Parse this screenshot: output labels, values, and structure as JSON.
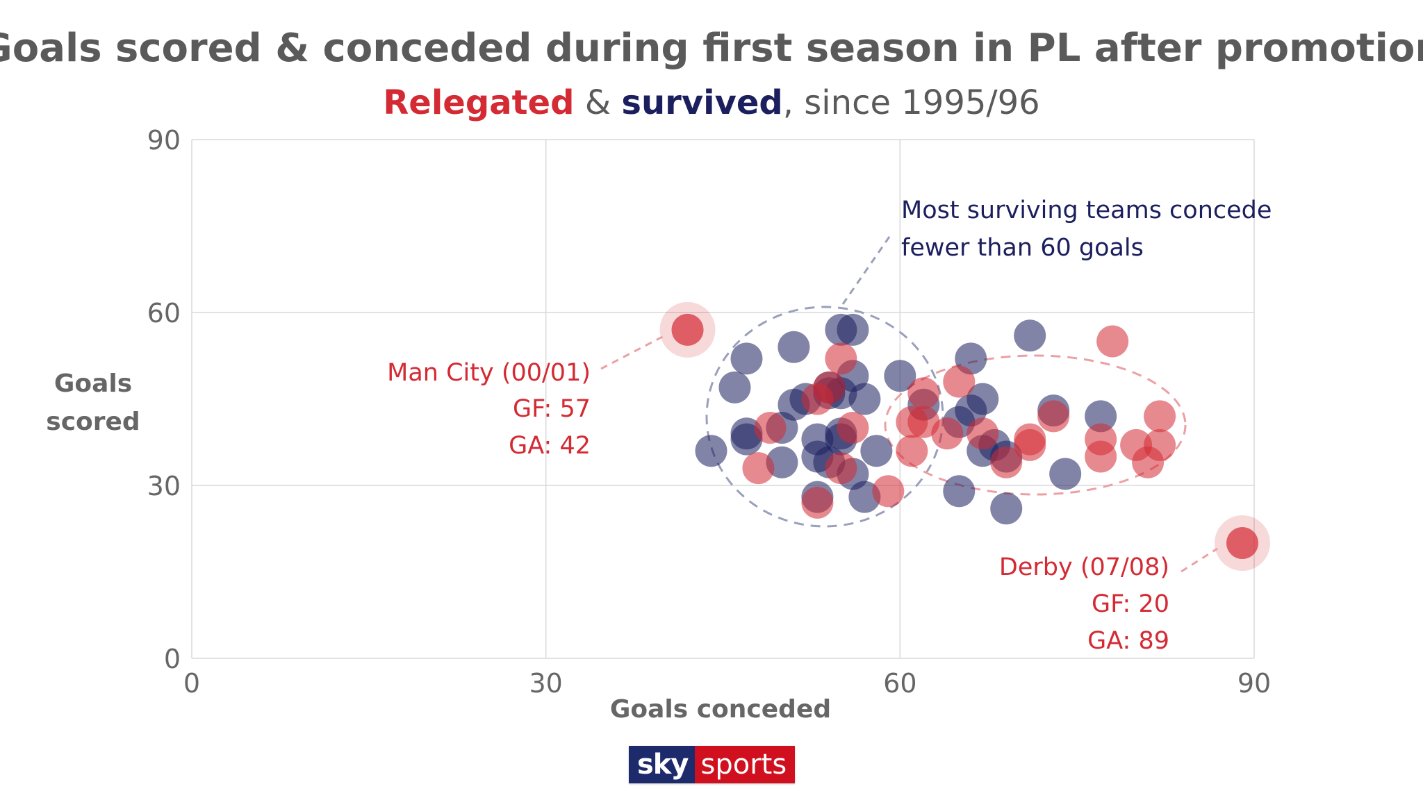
{
  "colors": {
    "relegated": "#d42a33",
    "survived": "#1c1f5e",
    "title_gray": "#5a5a5a",
    "axis_gray": "#666666",
    "grid": "#d8d8d8",
    "brand_navy": "#1d2a6b",
    "brand_red": "#d0101f"
  },
  "chart_data": {
    "type": "scatter",
    "title": "Goals scored & conceded during first season in PL after promotion",
    "subtitle": {
      "relegated_word": "Relegated",
      "connector": " & ",
      "survived_word": "survived",
      "suffix": ", since 1995/96"
    },
    "xlabel": "Goals conceded",
    "ylabel_lines": [
      "Goals",
      "scored"
    ],
    "xlim": [
      0,
      90
    ],
    "ylim": [
      0,
      90
    ],
    "x_ticks": [
      "0",
      "30",
      "60",
      "90"
    ],
    "y_ticks": [
      "0",
      "30",
      "60",
      "90"
    ],
    "grid": true,
    "series": [
      {
        "name": "Survived",
        "color": "#1c1f5e",
        "points": [
          {
            "x": 44,
            "y": 36
          },
          {
            "x": 46,
            "y": 47
          },
          {
            "x": 47,
            "y": 52
          },
          {
            "x": 47,
            "y": 38
          },
          {
            "x": 47,
            "y": 39
          },
          {
            "x": 50,
            "y": 34
          },
          {
            "x": 50,
            "y": 40
          },
          {
            "x": 51,
            "y": 54
          },
          {
            "x": 51,
            "y": 44
          },
          {
            "x": 52,
            "y": 45
          },
          {
            "x": 53,
            "y": 38
          },
          {
            "x": 53,
            "y": 35
          },
          {
            "x": 53,
            "y": 28
          },
          {
            "x": 54,
            "y": 47
          },
          {
            "x": 54,
            "y": 46
          },
          {
            "x": 54,
            "y": 34
          },
          {
            "x": 55,
            "y": 38
          },
          {
            "x": 55,
            "y": 39
          },
          {
            "x": 55,
            "y": 46
          },
          {
            "x": 55,
            "y": 57
          },
          {
            "x": 56,
            "y": 32
          },
          {
            "x": 56,
            "y": 57
          },
          {
            "x": 56,
            "y": 49
          },
          {
            "x": 57,
            "y": 45
          },
          {
            "x": 57,
            "y": 28
          },
          {
            "x": 58,
            "y": 36
          },
          {
            "x": 60,
            "y": 49
          },
          {
            "x": 62,
            "y": 44
          },
          {
            "x": 65,
            "y": 41
          },
          {
            "x": 65,
            "y": 29
          },
          {
            "x": 66,
            "y": 52
          },
          {
            "x": 66,
            "y": 43
          },
          {
            "x": 67,
            "y": 45
          },
          {
            "x": 67,
            "y": 36
          },
          {
            "x": 68,
            "y": 37
          },
          {
            "x": 69,
            "y": 35
          },
          {
            "x": 69,
            "y": 26
          },
          {
            "x": 71,
            "y": 56
          },
          {
            "x": 73,
            "y": 43
          },
          {
            "x": 74,
            "y": 32
          },
          {
            "x": 77,
            "y": 42
          }
        ]
      },
      {
        "name": "Relegated",
        "color": "#d42a33",
        "points": [
          {
            "x": 48,
            "y": 33
          },
          {
            "x": 49,
            "y": 40
          },
          {
            "x": 53,
            "y": 45
          },
          {
            "x": 53,
            "y": 27
          },
          {
            "x": 54,
            "y": 47
          },
          {
            "x": 55,
            "y": 52
          },
          {
            "x": 55,
            "y": 33
          },
          {
            "x": 56,
            "y": 40
          },
          {
            "x": 59,
            "y": 29
          },
          {
            "x": 61,
            "y": 41
          },
          {
            "x": 61,
            "y": 36
          },
          {
            "x": 62,
            "y": 41
          },
          {
            "x": 62,
            "y": 46
          },
          {
            "x": 64,
            "y": 39
          },
          {
            "x": 65,
            "y": 48
          },
          {
            "x": 67,
            "y": 39
          },
          {
            "x": 69,
            "y": 34
          },
          {
            "x": 71,
            "y": 37
          },
          {
            "x": 71,
            "y": 38
          },
          {
            "x": 73,
            "y": 42
          },
          {
            "x": 77,
            "y": 38
          },
          {
            "x": 77,
            "y": 35
          },
          {
            "x": 78,
            "y": 55
          },
          {
            "x": 80,
            "y": 37
          },
          {
            "x": 81,
            "y": 34
          },
          {
            "x": 82,
            "y": 37
          },
          {
            "x": 82,
            "y": 42
          }
        ]
      }
    ],
    "highlights": [
      {
        "name": "Man City (00/01)",
        "gf_label": "GF: 57",
        "ga_label": "GA: 42",
        "x": 42,
        "y": 57
      },
      {
        "name": "Derby (07/08)",
        "gf_label": "GF: 20",
        "ga_label": "GA: 89",
        "x": 89,
        "y": 20
      }
    ],
    "annotation": {
      "line1": "Most surviving teams concede",
      "line2": "fewer than 60 goals"
    }
  },
  "branding": {
    "sky": "sky",
    "sports": "sports"
  }
}
